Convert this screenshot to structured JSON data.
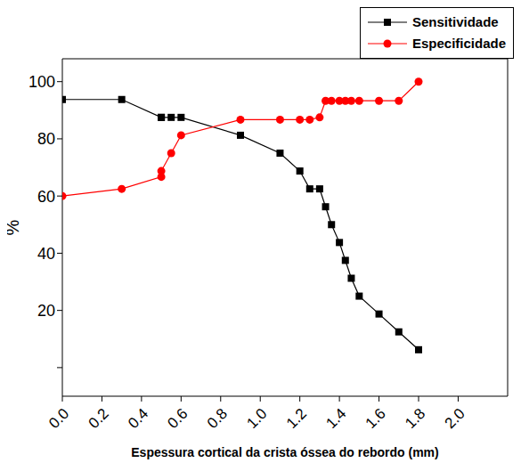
{
  "chart_data": {
    "type": "line",
    "x_label": "Espessura cortical da crista óssea do rebordo (mm)",
    "y_label": "%",
    "x": [
      0.0,
      0.3,
      0.5,
      0.5,
      0.55,
      0.6,
      0.9,
      1.1,
      1.2,
      1.25,
      1.3,
      1.33,
      1.36,
      1.4,
      1.43,
      1.46,
      1.5,
      1.6,
      1.7,
      1.8
    ],
    "series": [
      {
        "name": "Sensitividade",
        "color": "#000000",
        "marker": "square",
        "values": [
          93.75,
          93.75,
          87.5,
          87.5,
          87.5,
          87.5,
          81.25,
          75,
          68.75,
          62.5,
          62.5,
          56.25,
          50,
          43.75,
          37.5,
          31.25,
          25,
          18.75,
          12.5,
          6.25
        ]
      },
      {
        "name": "Especificidade",
        "color": "#ff0000",
        "marker": "circle",
        "values": [
          60,
          62.5,
          66.7,
          68.75,
          75,
          81.25,
          86.7,
          86.7,
          86.7,
          86.7,
          87.5,
          93.3,
          93.3,
          93.3,
          93.3,
          93.3,
          93.3,
          93.3,
          93.3,
          100
        ]
      }
    ],
    "xlim": [
      0,
      2.25
    ],
    "xticks": [
      {
        "value": 0,
        "label": "0.0"
      },
      {
        "value": 0.2,
        "label": "0.2"
      },
      {
        "value": 0.4,
        "label": "0.4"
      },
      {
        "value": 0.6,
        "label": "0.6"
      },
      {
        "value": 0.8,
        "label": "0.8"
      },
      {
        "value": 1.0,
        "label": "1.0"
      },
      {
        "value": 1.2,
        "label": "1.2"
      },
      {
        "value": 1.4,
        "label": "1.4"
      },
      {
        "value": 1.6,
        "label": "1.6"
      },
      {
        "value": 1.8,
        "label": "1.8"
      },
      {
        "value": 2.0,
        "label": "2.0"
      }
    ],
    "ylim": [
      -10,
      108
    ],
    "yticks": [
      0,
      20,
      40,
      60,
      80,
      100
    ],
    "grid": false,
    "legend": "top right"
  }
}
